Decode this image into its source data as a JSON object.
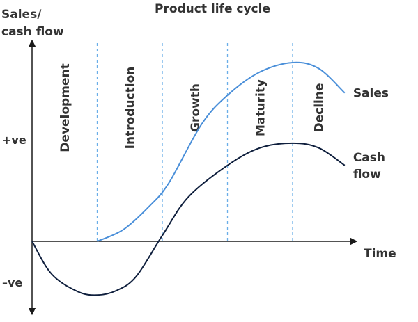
{
  "chart_data": {
    "type": "line",
    "title": "Product life cycle",
    "ylabel_lines": [
      "Sales/",
      "cash flow"
    ],
    "xlabel": "Time",
    "y_ticks": [
      "+ve",
      "–ve"
    ],
    "stages": [
      "Development",
      "Introduction",
      "Growth",
      "Maturity",
      "Decline"
    ],
    "stage_boundaries": [
      1,
      2,
      3,
      4
    ],
    "xlim": [
      0,
      5
    ],
    "ylim": [
      -1,
      1.6
    ],
    "series": [
      {
        "name": "Sales",
        "color": "#4a8fd9",
        "points": [
          [
            1.0,
            0.0
          ],
          [
            1.4,
            0.1
          ],
          [
            1.8,
            0.3
          ],
          [
            2.1,
            0.5
          ],
          [
            2.6,
            1.0
          ],
          [
            3.0,
            1.25
          ],
          [
            3.5,
            1.45
          ],
          [
            4.0,
            1.53
          ],
          [
            4.4,
            1.48
          ],
          [
            4.8,
            1.27
          ]
        ]
      },
      {
        "name": "Cash flow",
        "color": "#0f1f3d",
        "points": [
          [
            0.0,
            0.0
          ],
          [
            0.3,
            -0.28
          ],
          [
            0.7,
            -0.43
          ],
          [
            1.0,
            -0.46
          ],
          [
            1.3,
            -0.42
          ],
          [
            1.6,
            -0.3
          ],
          [
            2.0,
            0.05
          ],
          [
            2.4,
            0.38
          ],
          [
            3.0,
            0.65
          ],
          [
            3.5,
            0.8
          ],
          [
            4.0,
            0.84
          ],
          [
            4.4,
            0.8
          ],
          [
            4.8,
            0.65
          ]
        ]
      }
    ],
    "series_labels": [
      {
        "series": "Sales",
        "lines": [
          "Sales"
        ]
      },
      {
        "series": "Cash flow",
        "lines": [
          "Cash",
          "flow"
        ]
      }
    ],
    "colors": {
      "axis": "#1a1a1a",
      "divider": "#6aaee8",
      "text": "#333333"
    }
  }
}
